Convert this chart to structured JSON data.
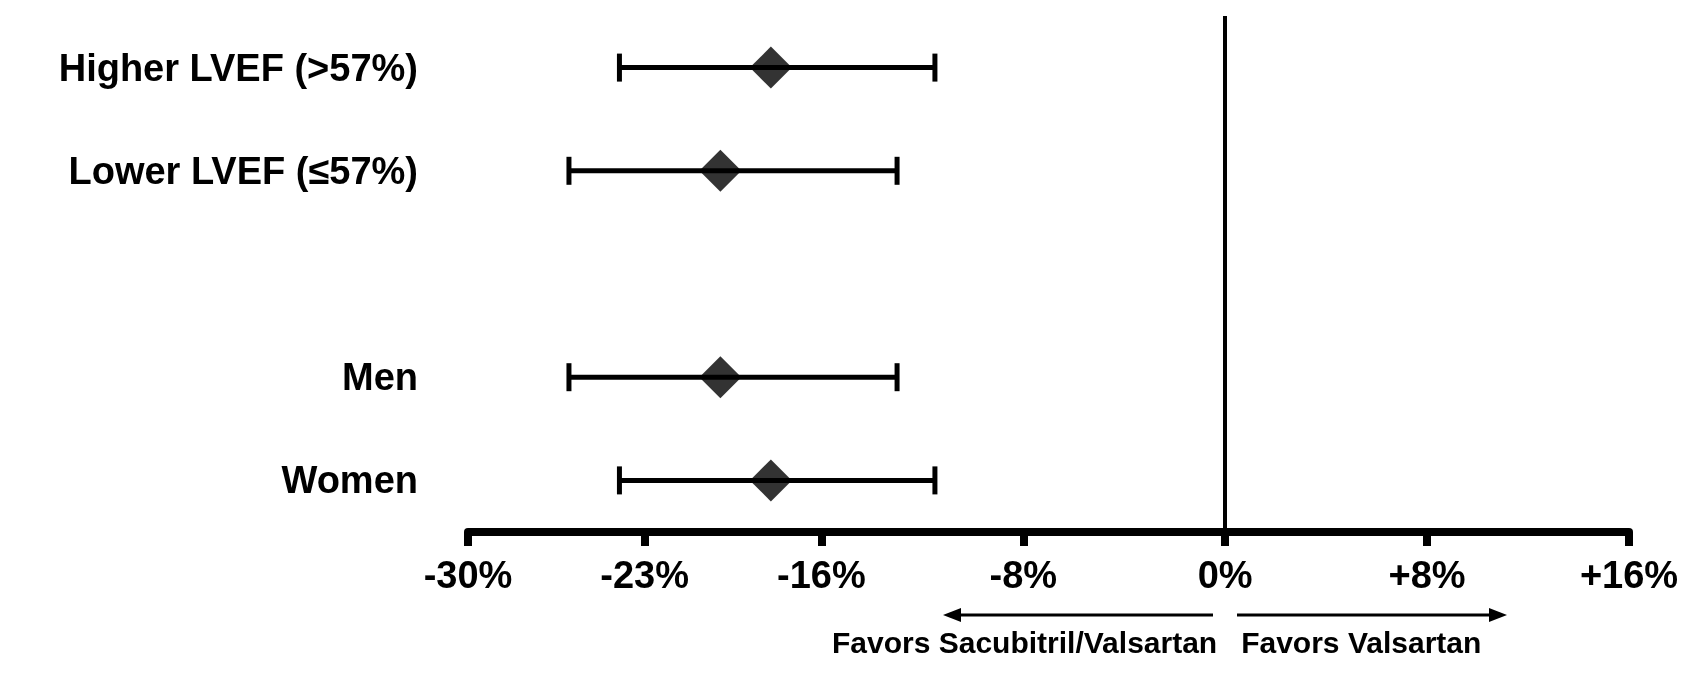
{
  "chart_data": {
    "type": "scatter",
    "orientation": "horizontal",
    "marker": "diamond",
    "color": "#000000",
    "categories": [
      "Higher LVEF (>57%)",
      "Lower LVEF (≤57%)",
      null,
      "Men",
      "Women"
    ],
    "values": [
      -18,
      -20,
      null,
      -20,
      -18
    ],
    "errors": [
      [
        -24,
        -11.5
      ],
      [
        -26,
        -13
      ],
      null,
      [
        -26,
        -13
      ],
      [
        -24,
        -11.5
      ]
    ],
    "xlim": [
      -30,
      16
    ],
    "xticks": [
      {
        "value": -30,
        "label": "-30%"
      },
      {
        "value": -23,
        "label": "-23%"
      },
      {
        "value": -16,
        "label": "-16%"
      },
      {
        "value": -8,
        "label": "-8%"
      },
      {
        "value": 0,
        "label": "0%"
      },
      {
        "value": 8,
        "label": "+8%"
      },
      {
        "value": 16,
        "label": "+16%"
      }
    ],
    "ref_lines": [
      {
        "axis": "x",
        "value": 0
      }
    ],
    "annotations": [
      "Favors Sacubitril/Valsartan",
      "Favors Valsartan"
    ]
  }
}
